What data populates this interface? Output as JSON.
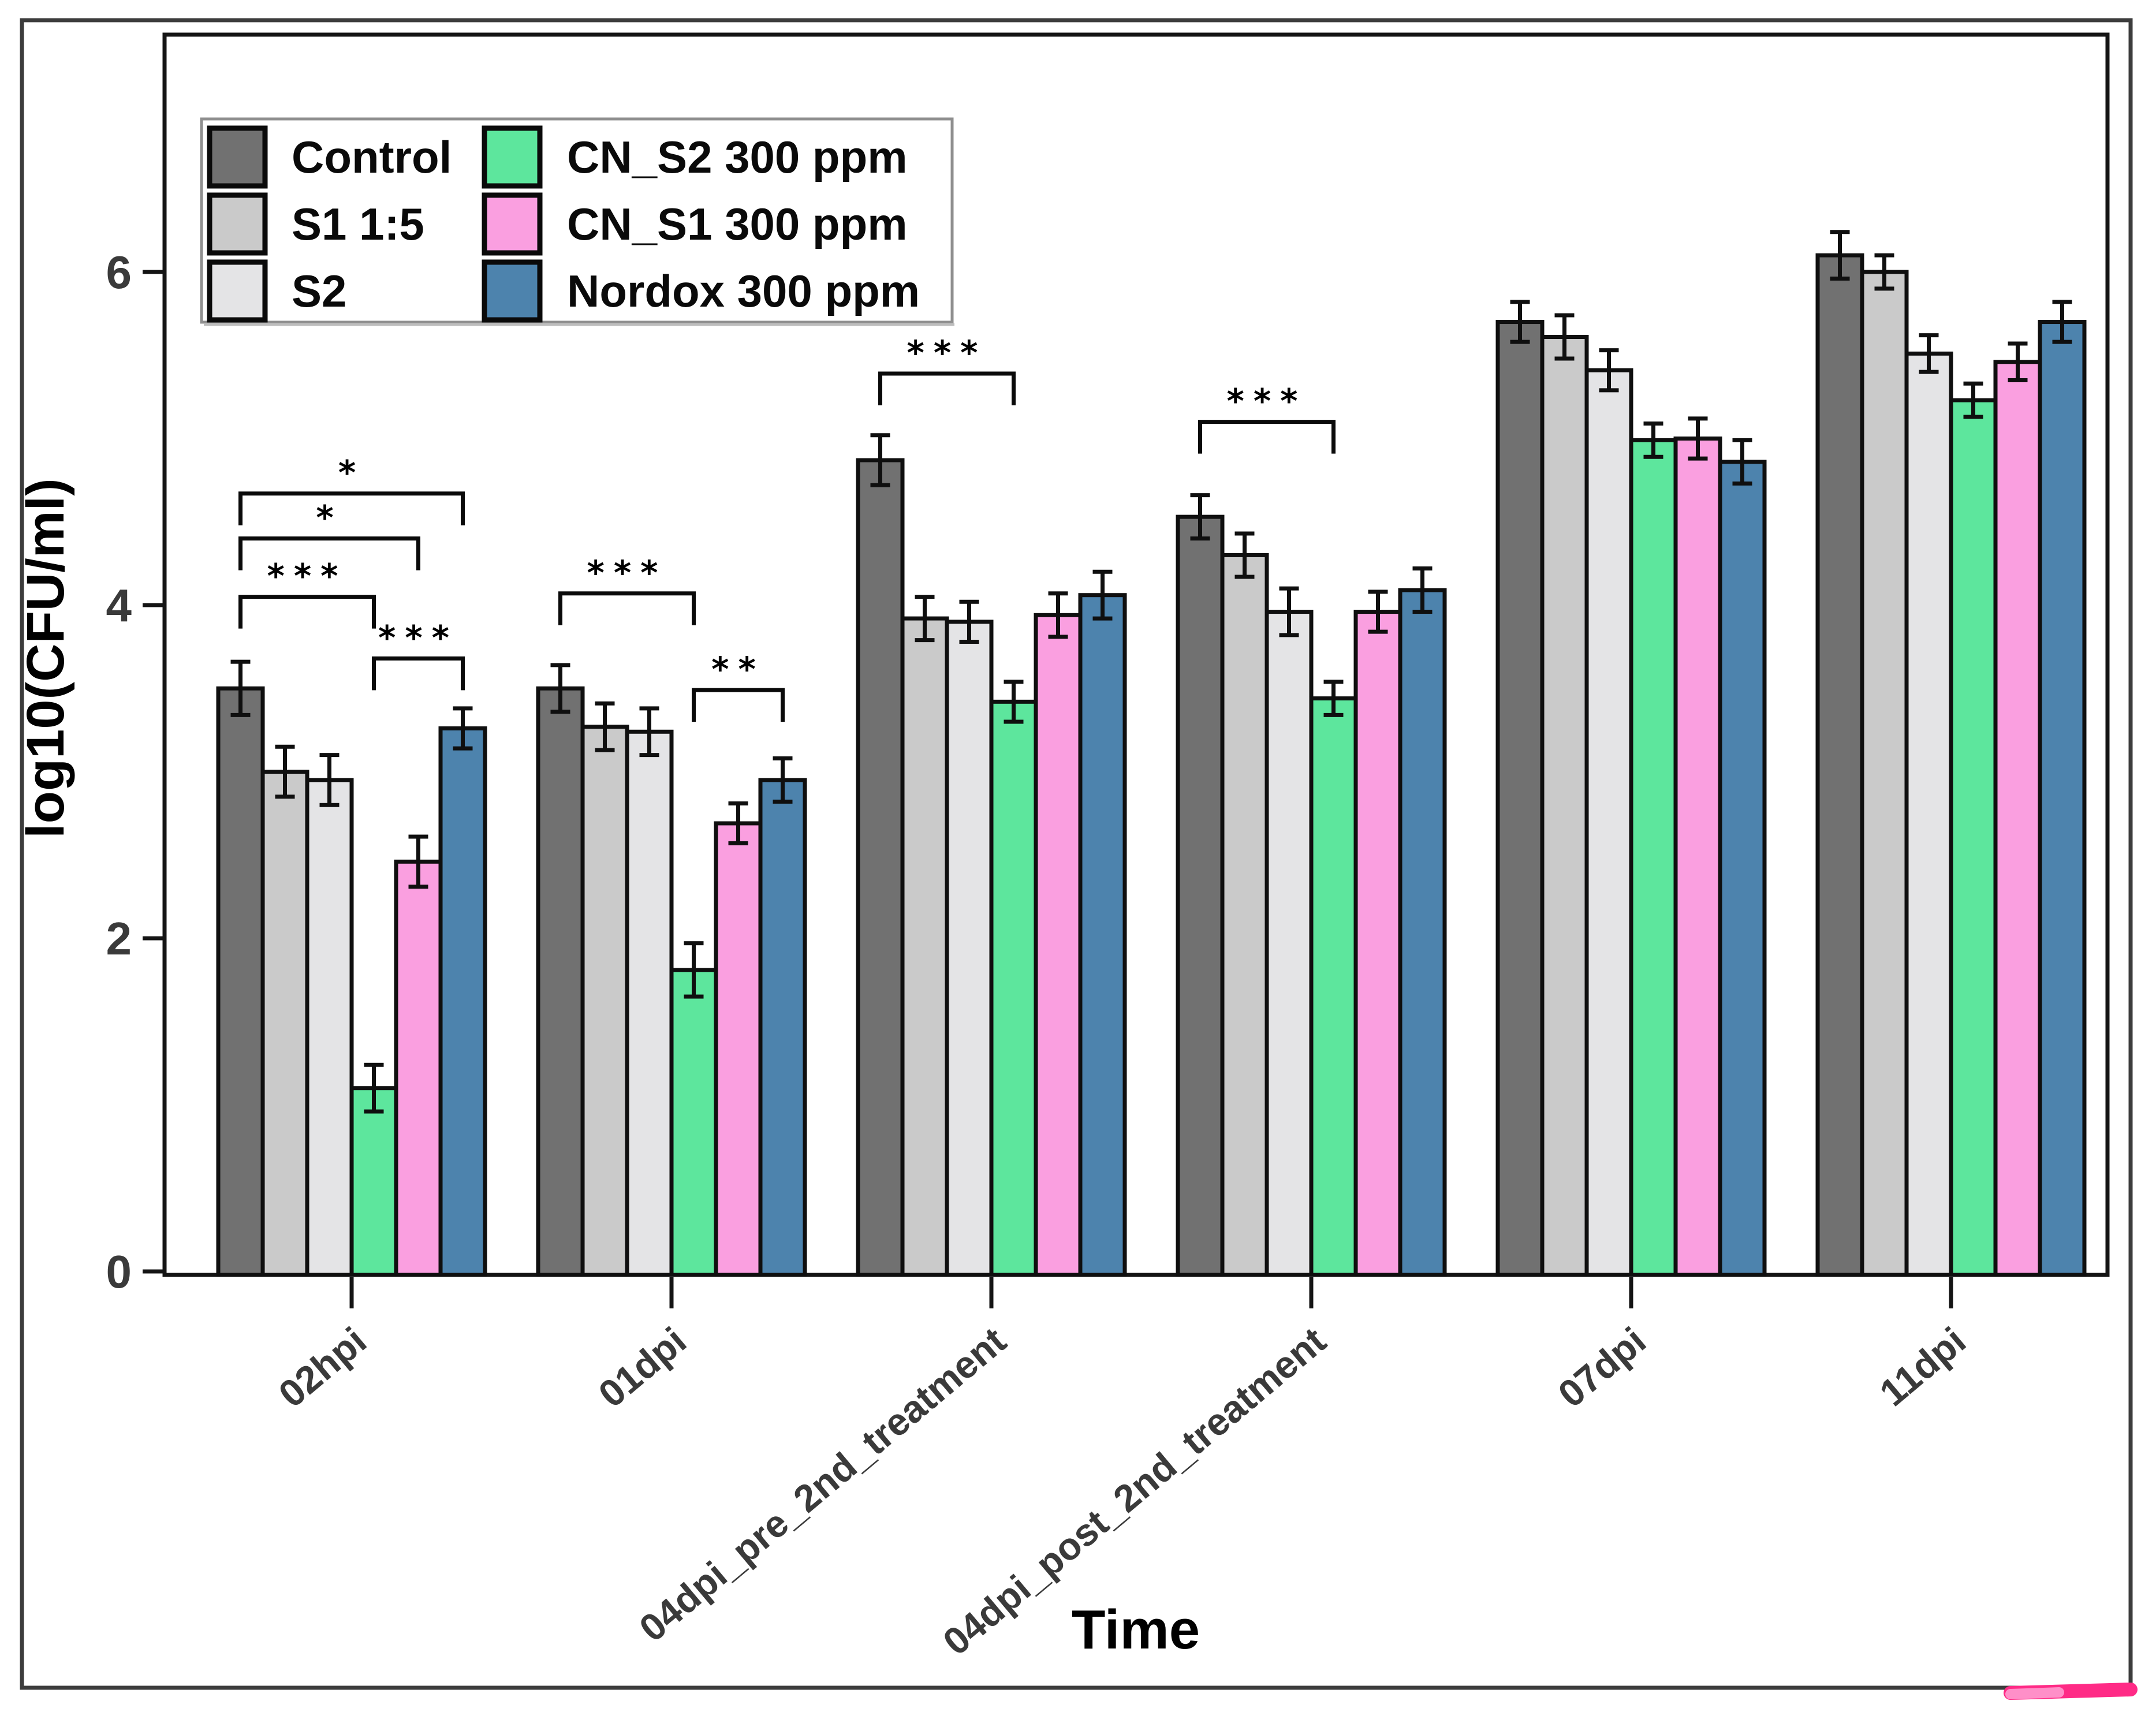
{
  "axis": {
    "y_title": "log10(CFU/ml)",
    "x_title": "Time",
    "y_ticks": [
      "0",
      "2",
      "4",
      "6"
    ]
  },
  "chart_data": {
    "type": "bar",
    "title": "",
    "xlabel": "Time",
    "ylabel": "log10(CFU/ml)",
    "ylim": [
      0,
      7.4
    ],
    "grid": false,
    "legend_position": "top-left",
    "error_bars": true,
    "y_axis": {
      "ticks": [
        0,
        2,
        4,
        6
      ]
    },
    "categories": [
      "02hpi",
      "01dpi",
      "04dpi_pre_2nd_treatment",
      "04dpi_post_2nd_treatment",
      "07dpi",
      "11dpi"
    ],
    "series": [
      {
        "name": "Control",
        "color": "#717171",
        "values": [
          3.5,
          3.5,
          4.87,
          4.53,
          5.7,
          6.1
        ],
        "errors": [
          0.16,
          0.14,
          0.15,
          0.13,
          0.12,
          0.14
        ]
      },
      {
        "name": "S1 1:5",
        "color": "#cacaca",
        "values": [
          3.0,
          3.27,
          3.92,
          4.3,
          5.61,
          6.0
        ],
        "errors": [
          0.15,
          0.14,
          0.13,
          0.13,
          0.13,
          0.1
        ]
      },
      {
        "name": "S2",
        "color": "#e4e4e6",
        "values": [
          2.95,
          3.24,
          3.9,
          3.96,
          5.41,
          5.51
        ],
        "errors": [
          0.15,
          0.14,
          0.12,
          0.14,
          0.12,
          0.11
        ]
      },
      {
        "name": "CN_S2 300 ppm",
        "color": "#5de69d",
        "values": [
          1.1,
          1.81,
          3.42,
          3.44,
          4.99,
          5.23
        ],
        "errors": [
          0.14,
          0.16,
          0.12,
          0.1,
          0.1,
          0.1
        ]
      },
      {
        "name": "CN_S1 300 ppm",
        "color": "#fa9fe0",
        "values": [
          2.46,
          2.69,
          3.94,
          3.96,
          5.0,
          5.46
        ],
        "errors": [
          0.15,
          0.12,
          0.13,
          0.12,
          0.12,
          0.11
        ]
      },
      {
        "name": "Nordox 300 ppm",
        "color": "#4d83ad",
        "values": [
          3.26,
          2.95,
          4.06,
          4.09,
          4.86,
          5.7
        ],
        "errors": [
          0.12,
          0.13,
          0.14,
          0.13,
          0.13,
          0.12
        ]
      }
    ],
    "significance_brackets": [
      {
        "group_index": 0,
        "from_bar": 0,
        "to_bar": 5,
        "stars": "*",
        "y": 4.67
      },
      {
        "group_index": 0,
        "from_bar": 0,
        "to_bar": 4,
        "stars": "*",
        "y": 4.4
      },
      {
        "group_index": 0,
        "from_bar": 0,
        "to_bar": 3,
        "stars": "***",
        "y": 4.05
      },
      {
        "group_index": 0,
        "from_bar": 3,
        "to_bar": 5,
        "stars": "***",
        "y": 3.68
      },
      {
        "group_index": 1,
        "from_bar": 0,
        "to_bar": 3,
        "stars": "***",
        "y": 4.07
      },
      {
        "group_index": 1,
        "from_bar": 3,
        "to_bar": 5,
        "stars": "**",
        "y": 3.49
      },
      {
        "group_index": 2,
        "from_bar": 0,
        "to_bar": 3,
        "stars": "***",
        "y": 5.39
      },
      {
        "group_index": 3,
        "from_bar": 0,
        "to_bar": 3,
        "stars": "***",
        "y": 5.1
      }
    ]
  },
  "annotations": {
    "highlight_color": "#ff2b86",
    "highlight_color_light": "#ff8fc8"
  }
}
